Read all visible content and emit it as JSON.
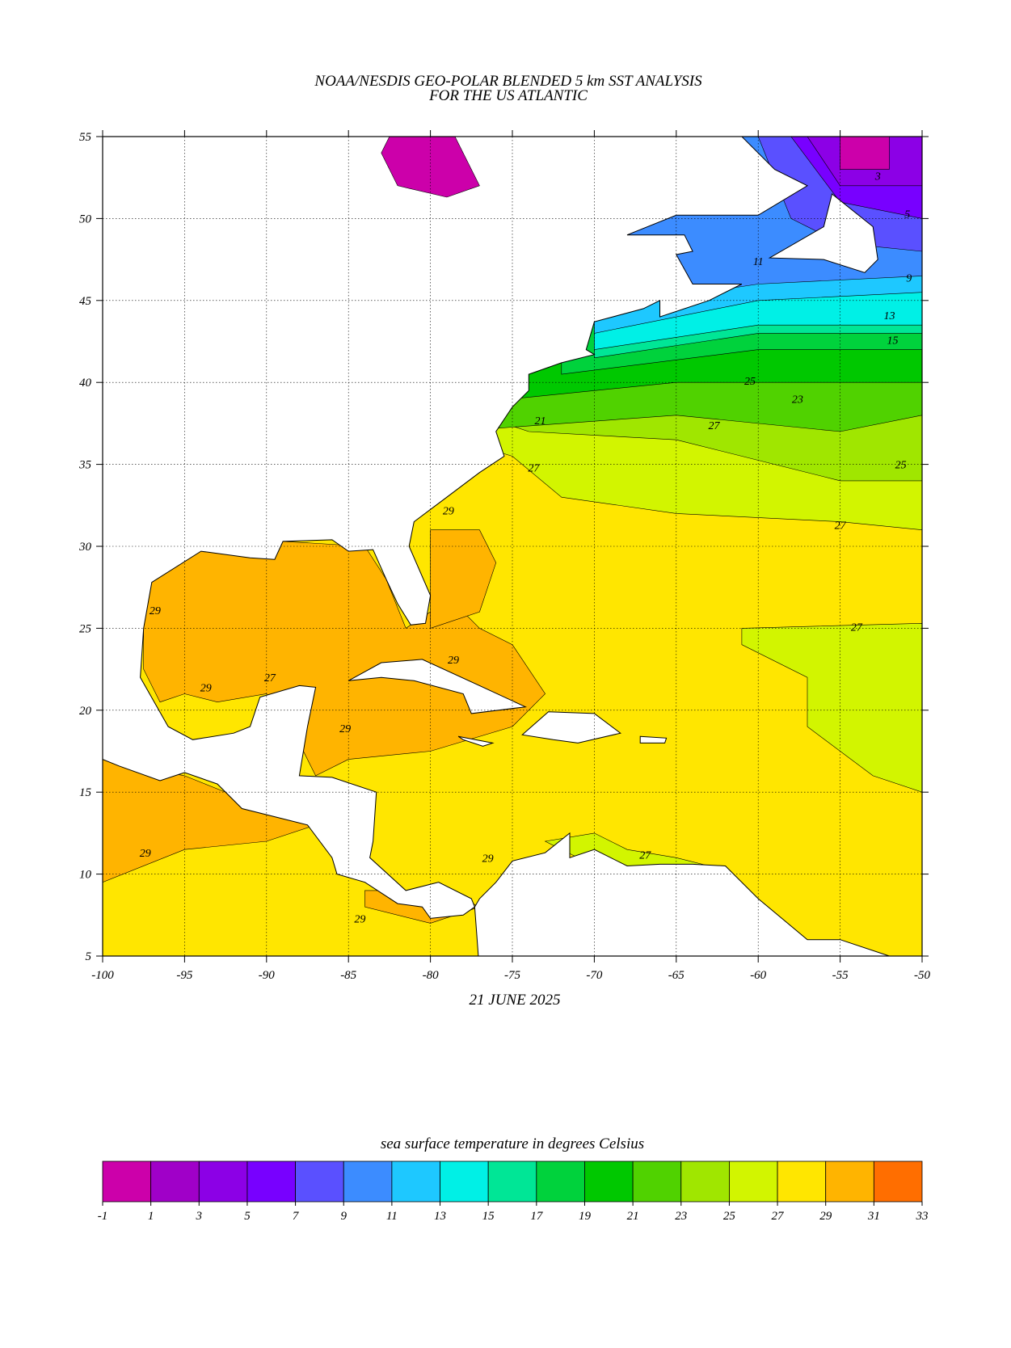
{
  "title": [
    "NOAA/NESDIS GEO-POLAR BLENDED 5 km SST ANALYSIS",
    "FOR THE US ATLANTIC"
  ],
  "date": "21 JUNE 2025",
  "axes": {
    "xlim": [
      -100,
      -50
    ],
    "ylim": [
      5,
      55
    ],
    "xticks": [
      -100,
      -95,
      -90,
      -85,
      -80,
      -75,
      -70,
      -65,
      -60,
      -55,
      -50
    ],
    "yticks": [
      5,
      10,
      15,
      20,
      25,
      30,
      35,
      40,
      45,
      50,
      55
    ],
    "grid": true
  },
  "colorbar": {
    "label": "sea surface temperature in degrees Celsius",
    "levels": [
      -1,
      1,
      3,
      5,
      7,
      9,
      11,
      13,
      15,
      17,
      19,
      21,
      23,
      25,
      27,
      29,
      31,
      33
    ],
    "colors": [
      "#cc00aa",
      "#a000c8",
      "#8c00e6",
      "#7800ff",
      "#5a50ff",
      "#3c8cff",
      "#1ec8ff",
      "#00f0e6",
      "#00e696",
      "#00d23c",
      "#00c800",
      "#50d200",
      "#a0e600",
      "#d2f500",
      "#ffe600",
      "#ffb400",
      "#ff6e00"
    ]
  },
  "contour_labels": [
    3,
    5,
    9,
    11,
    13,
    15,
    21,
    23,
    25,
    25,
    27,
    27,
    27,
    27,
    27,
    27,
    29,
    29,
    29,
    29,
    29,
    29,
    29,
    29
  ]
}
